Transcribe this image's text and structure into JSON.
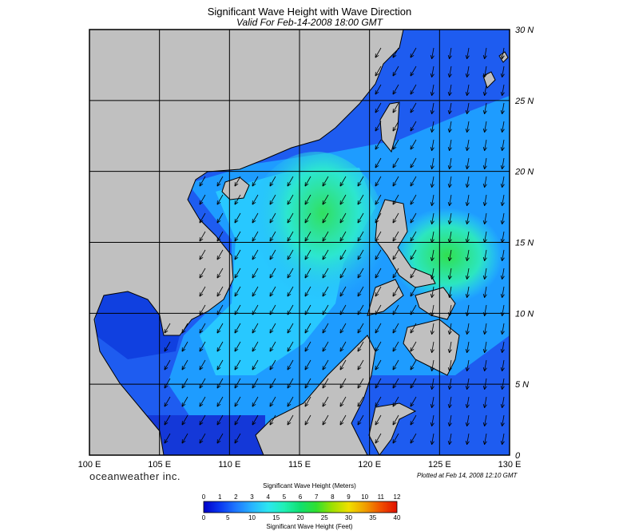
{
  "title": "Significant Wave Height with Wave Direction",
  "subtitle": "Valid For Feb-14-2008 18:00 GMT",
  "brand": "oceanweather inc.",
  "plotted": "Plotted at Feb 14, 2008 12:10 GMT",
  "map": {
    "lon_labels": [
      "100 E",
      "105 E",
      "110 E",
      "115 E",
      "120 E",
      "125 E",
      "130 E"
    ],
    "lat_labels": [
      "30 N",
      "25 N",
      "20 N",
      "15 N",
      "10 N",
      "5 N",
      "0"
    ],
    "lon_range": [
      100,
      130
    ],
    "lat_range": [
      0,
      30
    ],
    "land_color": "#c0c0c0",
    "grid": true
  },
  "colorbar": {
    "title_top": "Significant Wave Height (Meters)",
    "title_bottom": "Significant Wave Height (Feet)",
    "meters": [
      "0",
      "1",
      "2",
      "3",
      "4",
      "5",
      "6",
      "7",
      "8",
      "9",
      "10",
      "11",
      "12"
    ],
    "feet": [
      "0",
      "5",
      "10",
      "15",
      "20",
      "25",
      "30",
      "35",
      "40"
    ],
    "colors": [
      "#0000c8",
      "#0a37f0",
      "#1e78ff",
      "#28b4ff",
      "#2ce6f0",
      "#20f0b4",
      "#10e070",
      "#30e030",
      "#a0e000",
      "#f0e000",
      "#f0a000",
      "#f05000",
      "#e01000"
    ]
  }
}
